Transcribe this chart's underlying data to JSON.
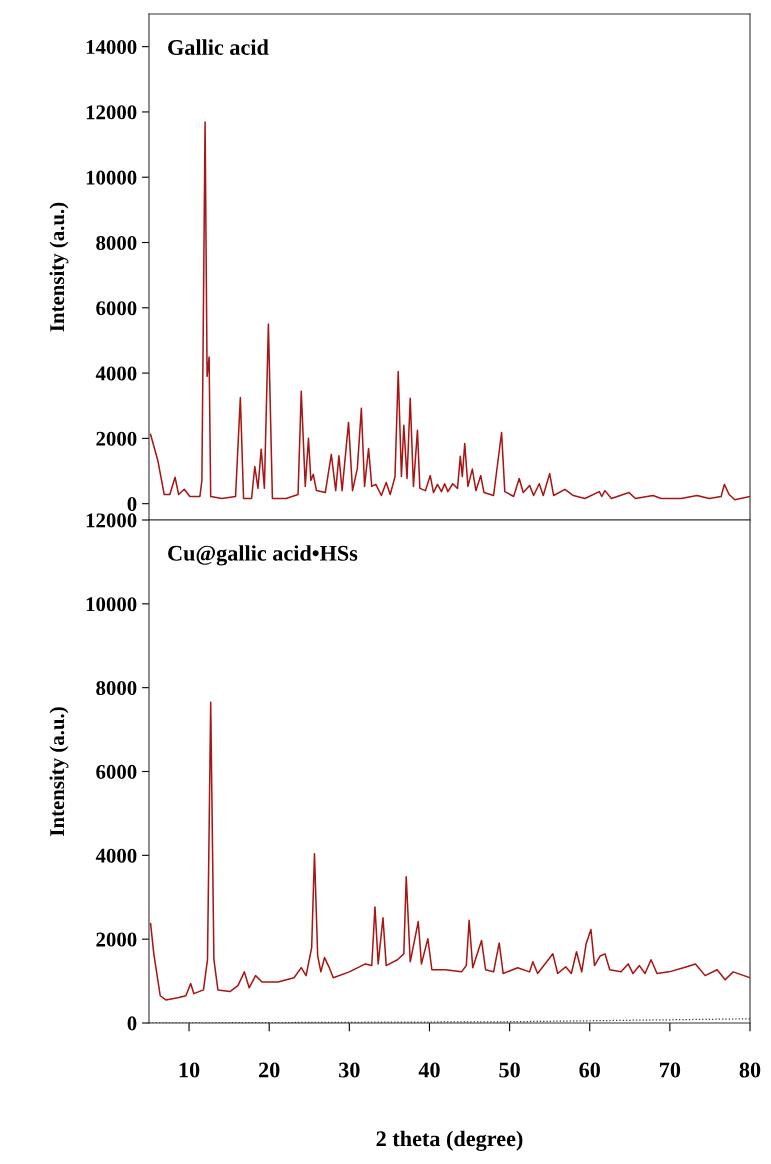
{
  "chart_data": [
    {
      "type": "line",
      "title": "Gallic acid",
      "ylabel": "Intensity (a.u.)",
      "xlim": [
        5,
        80
      ],
      "ylim": [
        -500,
        15000
      ],
      "yticks": [
        0,
        2000,
        4000,
        6000,
        8000,
        10000,
        12000,
        14000
      ],
      "tick_labels": "y",
      "grid": false,
      "legend": false,
      "series": [
        {
          "color": "#a81515",
          "line_style": "solid",
          "x": [
            5.2,
            6.1,
            6.9,
            7.6,
            8.25,
            8.7,
            9.4,
            10.1,
            11.35,
            11.6,
            12.0,
            12.25,
            12.5,
            12.7,
            14.1,
            15.8,
            16.4,
            16.8,
            17.8,
            18.2,
            18.6,
            19.0,
            19.4,
            19.9,
            20.4,
            22.1,
            23.6,
            24.0,
            24.5,
            24.9,
            25.2,
            25.5,
            25.9,
            27.0,
            27.75,
            28.3,
            28.7,
            29.1,
            29.9,
            30.4,
            31.0,
            31.5,
            31.9,
            32.4,
            32.8,
            33.3,
            34.0,
            34.6,
            35.1,
            35.7,
            36.1,
            36.5,
            36.8,
            37.2,
            37.6,
            38.0,
            38.5,
            38.8,
            39.5,
            40.1,
            40.5,
            41.0,
            41.5,
            41.9,
            42.3,
            42.9,
            43.5,
            43.85,
            44.1,
            44.4,
            44.8,
            45.35,
            45.8,
            46.4,
            46.8,
            48.0,
            49.0,
            49.4,
            50.5,
            51.2,
            51.7,
            52.5,
            53.0,
            53.7,
            54.2,
            55.0,
            55.5,
            56.9,
            57.95,
            59.4,
            61.2,
            61.5,
            61.9,
            62.7,
            64.9,
            65.7,
            67.9,
            68.9,
            71.4,
            73.4,
            74.9,
            76.4,
            76.8,
            77.4,
            78.1,
            80
          ],
          "values": [
            2120,
            1325,
            280,
            280,
            810,
            280,
            440,
            220,
            220,
            710,
            11690,
            3900,
            4490,
            220,
            160,
            220,
            3250,
            160,
            160,
            1140,
            470,
            1670,
            470,
            5500,
            160,
            160,
            280,
            3440,
            530,
            2000,
            710,
            900,
            400,
            340,
            1510,
            400,
            1470,
            400,
            2490,
            400,
            1080,
            2920,
            530,
            1690,
            530,
            590,
            250,
            650,
            280,
            830,
            4050,
            830,
            2400,
            770,
            3230,
            530,
            2250,
            470,
            400,
            860,
            340,
            590,
            370,
            610,
            370,
            610,
            470,
            1450,
            830,
            1840,
            530,
            1060,
            400,
            860,
            340,
            250,
            2180,
            370,
            220,
            770,
            340,
            560,
            250,
            610,
            250,
            920,
            250,
            440,
            250,
            160,
            370,
            220,
            400,
            160,
            340,
            160,
            250,
            160,
            160,
            250,
            160,
            220,
            590,
            280,
            120,
            220
          ]
        }
      ]
    },
    {
      "type": "line",
      "title": "Cu@gallic acid•HSs",
      "ylabel": "Intensity (a.u.)",
      "xlabel": "2 theta (degree)",
      "xlim": [
        5,
        80
      ],
      "xticks": [
        10,
        20,
        30,
        40,
        50,
        60,
        70,
        80
      ],
      "ylim": [
        0,
        12000
      ],
      "yticks": [
        0,
        2000,
        4000,
        6000,
        8000,
        10000,
        12000
      ],
      "grid": false,
      "legend": false,
      "series": [
        {
          "color": "#a81515",
          "line_style": "solid",
          "x": [
            5.2,
            5.6,
            6.4,
            7.1,
            8.6,
            9.6,
            10.2,
            10.6,
            11.8,
            12.3,
            12.7,
            13.1,
            13.6,
            15.1,
            16.1,
            16.9,
            17.5,
            18.3,
            19.1,
            21.1,
            23.1,
            24.0,
            24.6,
            25.3,
            25.65,
            26.05,
            26.45,
            26.9,
            27.5,
            28.0,
            30.0,
            32.0,
            32.8,
            33.2,
            33.6,
            34.2,
            34.6,
            36.0,
            36.8,
            37.1,
            37.6,
            38.6,
            39.0,
            39.8,
            40.3,
            42.0,
            44.0,
            44.6,
            44.95,
            45.4,
            46.5,
            47.0,
            48.0,
            48.7,
            49.2,
            51.0,
            52.5,
            52.9,
            53.5,
            55.4,
            56.0,
            57.0,
            57.7,
            58.35,
            59.0,
            59.55,
            60.15,
            60.6,
            61.3,
            61.9,
            62.5,
            63.9,
            64.8,
            65.4,
            66.2,
            66.9,
            67.65,
            68.4,
            69.9,
            71.7,
            73.2,
            74.4,
            75.9,
            76.9,
            77.9,
            80.0
          ],
          "values": [
            2370,
            1650,
            650,
            550,
            600,
            650,
            940,
            700,
            790,
            1510,
            7650,
            1510,
            790,
            750,
            890,
            1220,
            840,
            1130,
            980,
            980,
            1080,
            1320,
            1130,
            1800,
            4040,
            1600,
            1220,
            1560,
            1320,
            1080,
            1220,
            1410,
            1370,
            2770,
            1410,
            2510,
            1370,
            1510,
            1650,
            3490,
            1460,
            2420,
            1410,
            2010,
            1270,
            1270,
            1220,
            1370,
            2450,
            1320,
            1970,
            1270,
            1220,
            1910,
            1180,
            1320,
            1220,
            1460,
            1180,
            1650,
            1180,
            1340,
            1180,
            1700,
            1220,
            1890,
            2230,
            1370,
            1600,
            1650,
            1270,
            1220,
            1410,
            1180,
            1370,
            1180,
            1510,
            1180,
            1220,
            1320,
            1410,
            1130,
            1270,
            1030,
            1220,
            1080
          ]
        },
        {
          "color": "#333333",
          "line_style": "dotted",
          "x": [
            5,
            50,
            80
          ],
          "values": [
            0,
            30,
            100
          ]
        }
      ]
    }
  ]
}
